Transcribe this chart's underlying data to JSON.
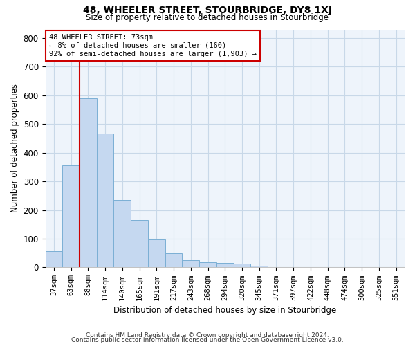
{
  "title1": "48, WHEELER STREET, STOURBRIDGE, DY8 1XJ",
  "title2": "Size of property relative to detached houses in Stourbridge",
  "xlabel": "Distribution of detached houses by size in Stourbridge",
  "ylabel": "Number of detached properties",
  "categories": [
    "37sqm",
    "63sqm",
    "88sqm",
    "114sqm",
    "140sqm",
    "165sqm",
    "191sqm",
    "217sqm",
    "243sqm",
    "268sqm",
    "294sqm",
    "320sqm",
    "345sqm",
    "371sqm",
    "397sqm",
    "422sqm",
    "448sqm",
    "474sqm",
    "500sqm",
    "525sqm",
    "551sqm"
  ],
  "values": [
    57,
    357,
    590,
    468,
    234,
    165,
    97,
    50,
    24,
    18,
    16,
    13,
    7,
    2,
    2,
    2,
    1,
    1,
    0,
    0,
    1
  ],
  "bar_color": "#c5d8f0",
  "bar_edge_color": "#7bafd4",
  "vline_x_index": 1,
  "vline_color": "#cc0000",
  "annotation_text": "48 WHEELER STREET: 73sqm\n← 8% of detached houses are smaller (160)\n92% of semi-detached houses are larger (1,903) →",
  "annotation_box_color": "#ffffff",
  "annotation_box_edge": "#cc0000",
  "ylim": [
    0,
    830
  ],
  "yticks": [
    0,
    100,
    200,
    300,
    400,
    500,
    600,
    700,
    800
  ],
  "grid_color": "#c8d8e8",
  "bg_color": "#eef4fb",
  "footer1": "Contains HM Land Registry data © Crown copyright and database right 2024.",
  "footer2": "Contains public sector information licensed under the Open Government Licence v3.0."
}
